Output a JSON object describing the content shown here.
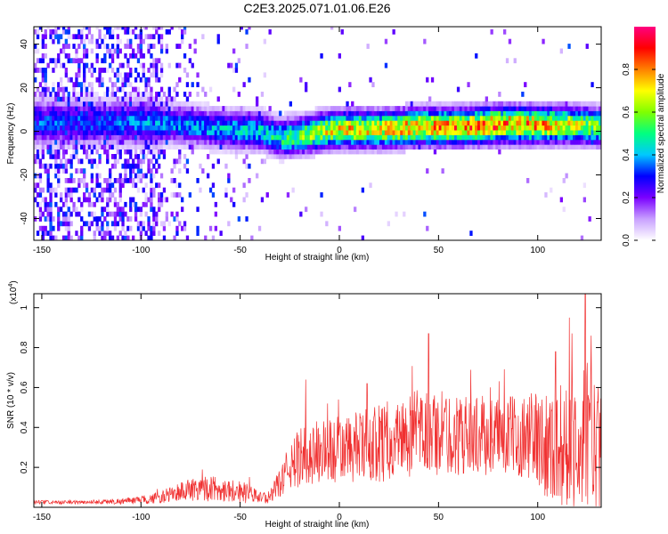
{
  "figure_title": "C2E3.2025.071.01.06.E26",
  "chart_data": [
    {
      "type": "heatmap",
      "xlabel": "Height of straight line (km)",
      "ylabel": "Frequency (Hz)",
      "xlim": [
        -154,
        132
      ],
      "ylim": [
        -50,
        48
      ],
      "x_ticks": [
        -150,
        -100,
        -50,
        0,
        50,
        100
      ],
      "y_ticks": [
        -40,
        -20,
        0,
        20,
        40
      ],
      "colorbar": {
        "label": "Normalized spectral amplitude",
        "range": [
          0,
          1
        ],
        "ticks": [
          0.0,
          0.2,
          0.4,
          0.6,
          0.8
        ],
        "colors": [
          "#ffffff",
          "#c8a0ff",
          "#7a00ff",
          "#0000ff",
          "#00c8ff",
          "#00ff80",
          "#80ff00",
          "#ffff00",
          "#ff8000",
          "#ff0000",
          "#ff0080"
        ]
      },
      "ridge": {
        "x": [
          -120,
          -100,
          -80,
          -60,
          -40,
          -30,
          -20,
          -10,
          0,
          20,
          40,
          60,
          80,
          100,
          120,
          132
        ],
        "center_freq": [
          3,
          3,
          2,
          0,
          -1,
          -4,
          -3,
          -1,
          0,
          0,
          1,
          1,
          2,
          2,
          2,
          1
        ],
        "peak_amplitude": [
          0.4,
          0.45,
          0.45,
          0.5,
          0.55,
          0.6,
          0.7,
          0.8,
          0.85,
          0.9,
          0.95,
          0.95,
          1.0,
          0.95,
          0.8,
          0.7
        ]
      }
    },
    {
      "type": "line",
      "xlabel": "Height of straight line (km)",
      "ylabel": "SNR (10 * v/v)",
      "y_multiplier": "(x10",
      "y_multiplier_exp": "4",
      "y_multiplier_close": ")",
      "xlim": [
        -154,
        132
      ],
      "ylim": [
        0,
        1.07
      ],
      "x_ticks": [
        -150,
        -100,
        -50,
        0,
        50,
        100
      ],
      "y_ticks": [
        0.2,
        0.4,
        0.6,
        0.8,
        1.0
      ],
      "series": [
        {
          "color": "#f03030",
          "envelope_x": [
            -154,
            -130,
            -110,
            -100,
            -90,
            -80,
            -70,
            -60,
            -50,
            -40,
            -35,
            -25,
            -20,
            -10,
            0,
            10,
            20,
            30,
            40,
            50,
            60,
            70,
            80,
            90,
            100,
            110,
            120,
            125,
            132
          ],
          "envelope_mean": [
            0.025,
            0.025,
            0.03,
            0.035,
            0.05,
            0.08,
            0.1,
            0.09,
            0.08,
            0.05,
            0.05,
            0.2,
            0.25,
            0.28,
            0.28,
            0.3,
            0.32,
            0.35,
            0.37,
            0.37,
            0.36,
            0.36,
            0.36,
            0.36,
            0.34,
            0.3,
            0.33,
            0.35,
            0.3
          ],
          "envelope_spread": [
            0.01,
            0.01,
            0.015,
            0.02,
            0.03,
            0.05,
            0.07,
            0.06,
            0.06,
            0.03,
            0.03,
            0.12,
            0.15,
            0.17,
            0.17,
            0.18,
            0.2,
            0.2,
            0.22,
            0.22,
            0.2,
            0.2,
            0.2,
            0.2,
            0.25,
            0.3,
            0.35,
            0.38,
            0.3
          ],
          "peaks": [
            [
              -17,
              0.64
            ],
            [
              -6,
              0.52
            ],
            [
              14,
              0.62
            ],
            [
              45,
              0.87
            ],
            [
              109,
              0.78
            ],
            [
              116,
              0.95
            ],
            [
              124,
              1.07
            ],
            [
              127,
              0.86
            ]
          ]
        }
      ]
    }
  ]
}
